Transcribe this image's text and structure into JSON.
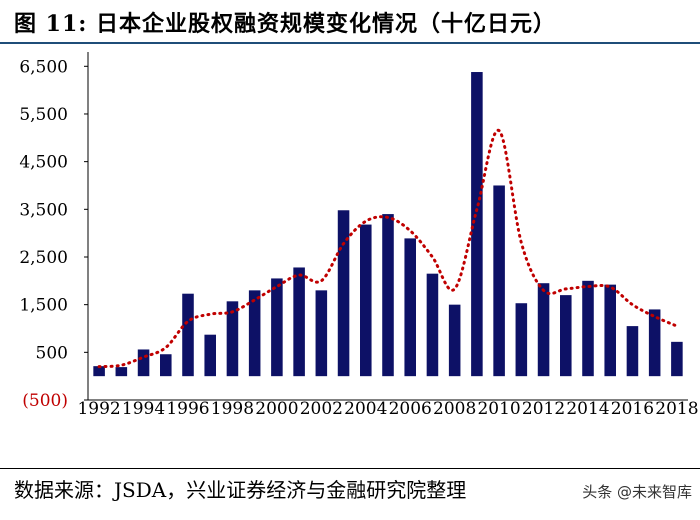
{
  "title": "图 11:  日本企业股权融资规模变化情况（十亿日元）",
  "source": "数据来源：JSDA，兴业证券经济与金融研究院整理",
  "watermark": "头条 @未来智库",
  "colors": {
    "bar": "#0d1166",
    "trend": "#c00000",
    "axis": "#000000",
    "negative_tick": "#c00000"
  },
  "chart_data": {
    "type": "bar",
    "categories": [
      "1992",
      "1993",
      "1994",
      "1995",
      "1996",
      "1997",
      "1998",
      "1999",
      "2000",
      "2001",
      "2002",
      "2003",
      "2004",
      "2005",
      "2006",
      "2007",
      "2008",
      "2009",
      "2010",
      "2011",
      "2012",
      "2013",
      "2014",
      "2015",
      "2016",
      "2017",
      "2018"
    ],
    "x_tick_labels": [
      "1992",
      "1994",
      "1996",
      "1998",
      "2000",
      "2002",
      "2004",
      "2006",
      "2008",
      "2010",
      "2012",
      "2014",
      "2016",
      "2018"
    ],
    "series": [
      {
        "type": "bar",
        "values": [
          210,
          190,
          560,
          460,
          1730,
          870,
          1570,
          1800,
          2050,
          2280,
          1800,
          3480,
          3180,
          3400,
          2890,
          2150,
          1500,
          6380,
          4000,
          1530,
          1950,
          1700,
          2000,
          1920,
          1050,
          1400,
          720
        ]
      },
      {
        "type": "line",
        "style": "dotted",
        "note": "trend",
        "values": [
          200,
          230,
          400,
          600,
          1150,
          1300,
          1350,
          1600,
          1880,
          2120,
          2000,
          2780,
          3250,
          3330,
          3050,
          2500,
          1830,
          3500,
          5150,
          2800,
          1800,
          1830,
          1880,
          1870,
          1500,
          1250,
          1050
        ]
      }
    ],
    "y_ticks": [
      -500,
      500,
      1500,
      2500,
      3500,
      4500,
      5500,
      6500
    ],
    "y_tick_labels": [
      "(500)",
      "500",
      "1,500",
      "2,500",
      "3,500",
      "4,500",
      "5,500",
      "6,500"
    ],
    "ylim": [
      -500,
      6800
    ],
    "xlabel": "",
    "ylabel": "",
    "grid": false,
    "legend": "none"
  }
}
